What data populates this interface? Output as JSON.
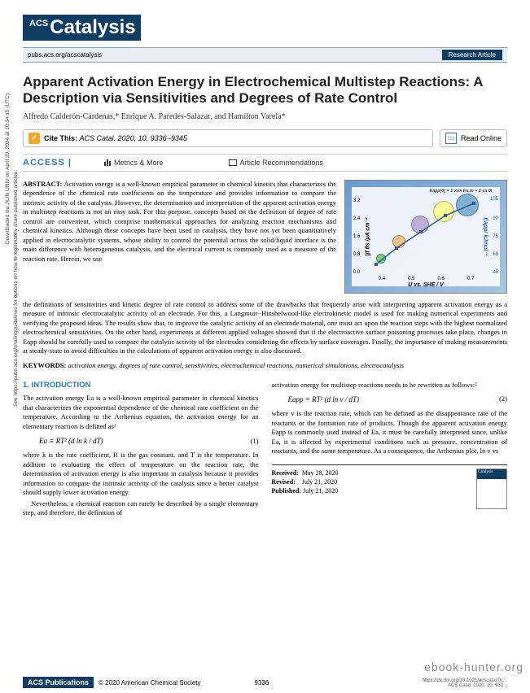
{
  "journal": {
    "logo_prefix": "ACS",
    "logo_text": "Catalysis",
    "url": "pubs.acs.org/acscatalysis",
    "article_type": "Research Article"
  },
  "title": "Apparent Activation Energy in Electrochemical Multistep Reactions: A Description via Sensitivities and Degrees of Rate Control",
  "authors": "Alfredo Calderón-Cárdenas,* Enrique A. Paredes-Salazar, and Hamilton Varela*",
  "cite": {
    "label": "Cite This:",
    "ref": "ACS Catal. 2020, 10, 9336−9345"
  },
  "read_online": "Read Online",
  "access": {
    "label": "ACCESS",
    "metrics": "Metrics & More",
    "recommendations": "Article Recommendations"
  },
  "abstract": {
    "label": "ABSTRACT:",
    "text1": "Activation energy is a well-known empirical parameter in chemical kinetics that characterizes the dependence of the chemical rate coefficients on the temperature and provides information to compare the intrinsic activity of the catalysts. However, the determination and interpretation of the apparent activation energy in multistep reactions is not an easy task. For this purpose, concepts based on the definition of degree of rate control are convenient, which comprise mathematical approaches for analyzing reaction mechanisms and chemical kinetics. Although these concepts have been used in catalysis, they have not yet been quantitatively applied in electrocatalytic systems, whose ability to control the potential across the solid/liquid interface is the main difference with heterogeneous catalysis, and the electrical current is commonly used as a measure of the reaction rate. Herein, we use",
    "text2": "the definitions of sensitivities and kinetic degree of rate control to address some of the drawbacks that frequently arise with interpreting apparent activation energy as a measure of intrinsic electrocatalytic activity of an electrode. For this, a Langmuir−Hinshelwood-like electrokinetic model is used for making numerical experiments and verifying the proposed ideas. The results show that, to improve the catalytic activity of an electrode material, one must act upon the reaction steps with the highest normalized electrochemical sensitivities. On the other hand, experiments at different applied voltages showed that if the electroactive surface poisoning processes take place, changes in Eapp should be carefully used to compare the catalytic activity of the electrodes considering the effects by surface coverages. Finally, the importance of making measurements at steady-state to avoid difficulties in the calculations of apparent activation energy is also discussed."
  },
  "keywords": {
    "label": "KEYWORDS:",
    "text": "activation energy, degrees of rate control, sensitivities, electrochemical reactions, numerical simulations, electrocatalysis"
  },
  "chart": {
    "xlabel": "U vs. SHE  / V",
    "ylabel_left": "|jf θs /μA cm⁻²",
    "ylabel_right": "Eapp/ kJmol⁻¹",
    "equation": "Eapp(θ) = Σ xrm Ea,m + Σ εa θi",
    "xticks": [
      {
        "v": "0.4",
        "pos": 18
      },
      {
        "v": "0.5",
        "pos": 38
      },
      {
        "v": "0.6",
        "pos": 58
      },
      {
        "v": "0.7",
        "pos": 78
      }
    ],
    "yticks_left": [
      {
        "v": "3.2",
        "pos": 12
      },
      {
        "v": "2.4",
        "pos": 30
      },
      {
        "v": "1.6",
        "pos": 48
      },
      {
        "v": "0.8",
        "pos": 66
      },
      {
        "v": "0.0",
        "pos": 84
      }
    ],
    "yticks_right": [
      {
        "v": "105",
        "pos": 10
      },
      {
        "v": "90",
        "pos": 30
      },
      {
        "v": "75",
        "pos": 48
      },
      {
        "v": "60",
        "pos": 66
      },
      {
        "v": "45",
        "pos": 84
      }
    ],
    "bubbles": [
      {
        "x": 20,
        "y": 72,
        "r": 12,
        "color": "#7fc97f"
      },
      {
        "x": 32,
        "y": 55,
        "r": 16,
        "color": "#fdc086"
      },
      {
        "x": 46,
        "y": 38,
        "r": 22,
        "color": "#beaed4"
      },
      {
        "x": 62,
        "y": 25,
        "r": 26,
        "color": "#ffff99"
      },
      {
        "x": 78,
        "y": 18,
        "r": 28,
        "color": "#80b1d3"
      }
    ],
    "line_color": "#2a5d9f"
  },
  "intro": {
    "heading": "1. INTRODUCTION",
    "p1": "The activation energy Ea is a well-known empirical parameter in chemical kinetics that characterizes the exponential dependence of the chemical rate coefficient on the temperature. According to the Arrhenius equation, the activation energy for an elementary reaction is defined as¹",
    "eq1": "Ea ≡ RT² (d ln k / dT)",
    "eq1_num": "(1)",
    "p2": "where k is the rate coefficient, R is the gas constant, and T is the temperature. In addition to evaluating the effect of temperature on the reaction rate, the determination of activation energy is also important in catalysis because it provides information to compare the intrinsic activity of the catalysts since a better catalyst should supply lower activation energy.",
    "p3": "Nevertheless, a chemical reaction can rarely be described by a single elementary step, and therefore, the definition of",
    "p4": "activation energy for multistep reactions needs to be rewritten as follows:²",
    "eq2": "Eapp = RT² (d ln v / dT)",
    "eq2_num": "(2)",
    "p5": "where v is the reaction rate, which can be defined as the disappearance rate of the reactants or the formation rate of products. Though the apparent activation energy Eapp is commonly used instead of Ea, it must be carefully interpreted since, unlike Ea, it is affected by experimental conditions such as pressure, concentration of reactants, and the same temperature. As a consequence, the Arrhenius plot, ln v vs"
  },
  "dates": {
    "received_label": "Received:",
    "received": "May 28, 2020",
    "revised_label": "Revised:",
    "revised": "July 21, 2020",
    "published_label": "Published:",
    "published": "July 21, 2020"
  },
  "sideways": {
    "line1": "Downloaded via JILIN UNIV on April 29, 2024 at 10:34:15 (UTC).",
    "line2": "See https://pubs.acs.org/sharingguidelines for options on how to legitimately share published articles."
  },
  "footer": {
    "pub": "ACS Publications",
    "copyright": "© 2020 American Chemical Society",
    "doi_top": "https://dx.doi.org/10.1021/acscatal.0c...",
    "doi_bottom": "ACS Catal. 2020, 10, 933...",
    "page": "9336"
  },
  "watermark": "ebook-hunter.org"
}
